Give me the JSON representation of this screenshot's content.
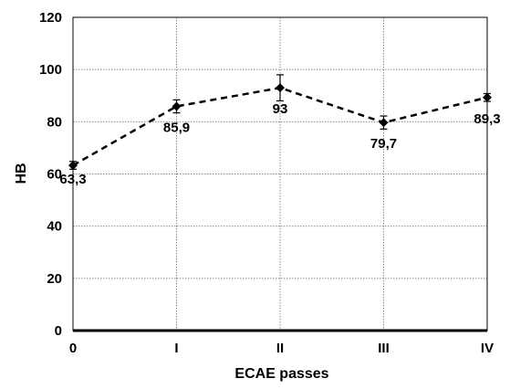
{
  "chart_data": {
    "type": "line",
    "categories": [
      "0",
      "I",
      "II",
      "III",
      "IV"
    ],
    "values": [
      63.3,
      85.9,
      93,
      79.7,
      89.3
    ],
    "error_bars": [
      1.5,
      2.5,
      5,
      2.5,
      1.5
    ],
    "data_labels": [
      "63,3",
      "85,9",
      "93",
      "79,7",
      "89,3"
    ],
    "xlabel": "ECAE passes",
    "ylabel": "HB",
    "ylim": [
      0,
      120
    ],
    "yticks": [
      "0",
      "20",
      "40",
      "60",
      "80",
      "100",
      "120"
    ],
    "grid": true,
    "line_style": "dashed",
    "marker": "diamond",
    "line_color": "#000000",
    "grid_color": "#8c8c8c"
  }
}
